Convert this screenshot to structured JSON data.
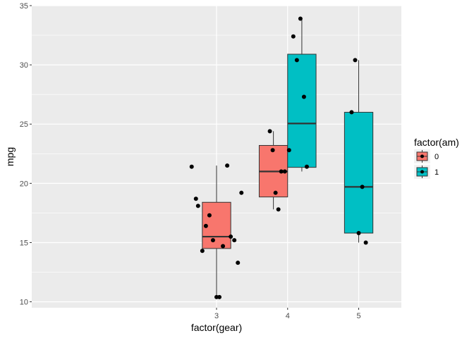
{
  "chart_data": {
    "type": "boxplot",
    "xlabel": "factor(gear)",
    "ylabel": "mpg",
    "categories": [
      "3",
      "4",
      "5"
    ],
    "ylim": [
      9.5,
      35
    ],
    "yticks": [
      10,
      15,
      20,
      25,
      30,
      35
    ],
    "grid": true,
    "legend": {
      "title": "factor(am)",
      "position": "right",
      "entries": [
        {
          "label": "0",
          "color": "#F8766D"
        },
        {
          "label": "1",
          "color": "#00BFC4"
        }
      ]
    },
    "boxes": [
      {
        "gear": "3",
        "am": "0",
        "min": 10.4,
        "q1": 14.5,
        "median": 15.5,
        "q3": 18.4,
        "max": 21.5,
        "outliers": []
      },
      {
        "gear": "4",
        "am": "0",
        "min": 17.8,
        "q1": 18.85,
        "median": 21.0,
        "q3": 23.2,
        "max": 24.4,
        "outliers": []
      },
      {
        "gear": "4",
        "am": "1",
        "min": 21.0,
        "q1": 21.35,
        "median": 25.05,
        "q3": 30.9,
        "max": 33.9,
        "outliers": []
      },
      {
        "gear": "5",
        "am": "1",
        "min": 15.0,
        "q1": 15.8,
        "median": 19.7,
        "q3": 26.0,
        "max": 30.4,
        "outliers": []
      }
    ],
    "points": [
      {
        "x": 2.65,
        "y": 21.4
      },
      {
        "x": 2.71,
        "y": 18.7
      },
      {
        "x": 2.74,
        "y": 18.1
      },
      {
        "x": 2.8,
        "y": 14.3
      },
      {
        "x": 2.85,
        "y": 16.4
      },
      {
        "x": 2.9,
        "y": 17.3
      },
      {
        "x": 2.95,
        "y": 15.2
      },
      {
        "x": 3.0,
        "y": 10.4
      },
      {
        "x": 3.04,
        "y": 10.4
      },
      {
        "x": 3.09,
        "y": 14.7
      },
      {
        "x": 3.15,
        "y": 21.5
      },
      {
        "x": 3.2,
        "y": 15.5
      },
      {
        "x": 3.25,
        "y": 15.2
      },
      {
        "x": 3.3,
        "y": 13.3
      },
      {
        "x": 3.35,
        "y": 19.2
      },
      {
        "x": 3.75,
        "y": 24.4
      },
      {
        "x": 3.79,
        "y": 22.8
      },
      {
        "x": 3.83,
        "y": 19.2
      },
      {
        "x": 3.87,
        "y": 17.8
      },
      {
        "x": 3.91,
        "y": 21.0
      },
      {
        "x": 3.96,
        "y": 21.0
      },
      {
        "x": 4.02,
        "y": 22.8
      },
      {
        "x": 4.08,
        "y": 32.4
      },
      {
        "x": 4.13,
        "y": 30.4
      },
      {
        "x": 4.18,
        "y": 33.9
      },
      {
        "x": 4.23,
        "y": 27.3
      },
      {
        "x": 4.27,
        "y": 21.4
      },
      {
        "x": 4.9,
        "y": 26.0
      },
      {
        "x": 4.95,
        "y": 30.4
      },
      {
        "x": 5.0,
        "y": 15.8
      },
      {
        "x": 5.05,
        "y": 19.7
      },
      {
        "x": 5.1,
        "y": 15.0
      }
    ]
  }
}
